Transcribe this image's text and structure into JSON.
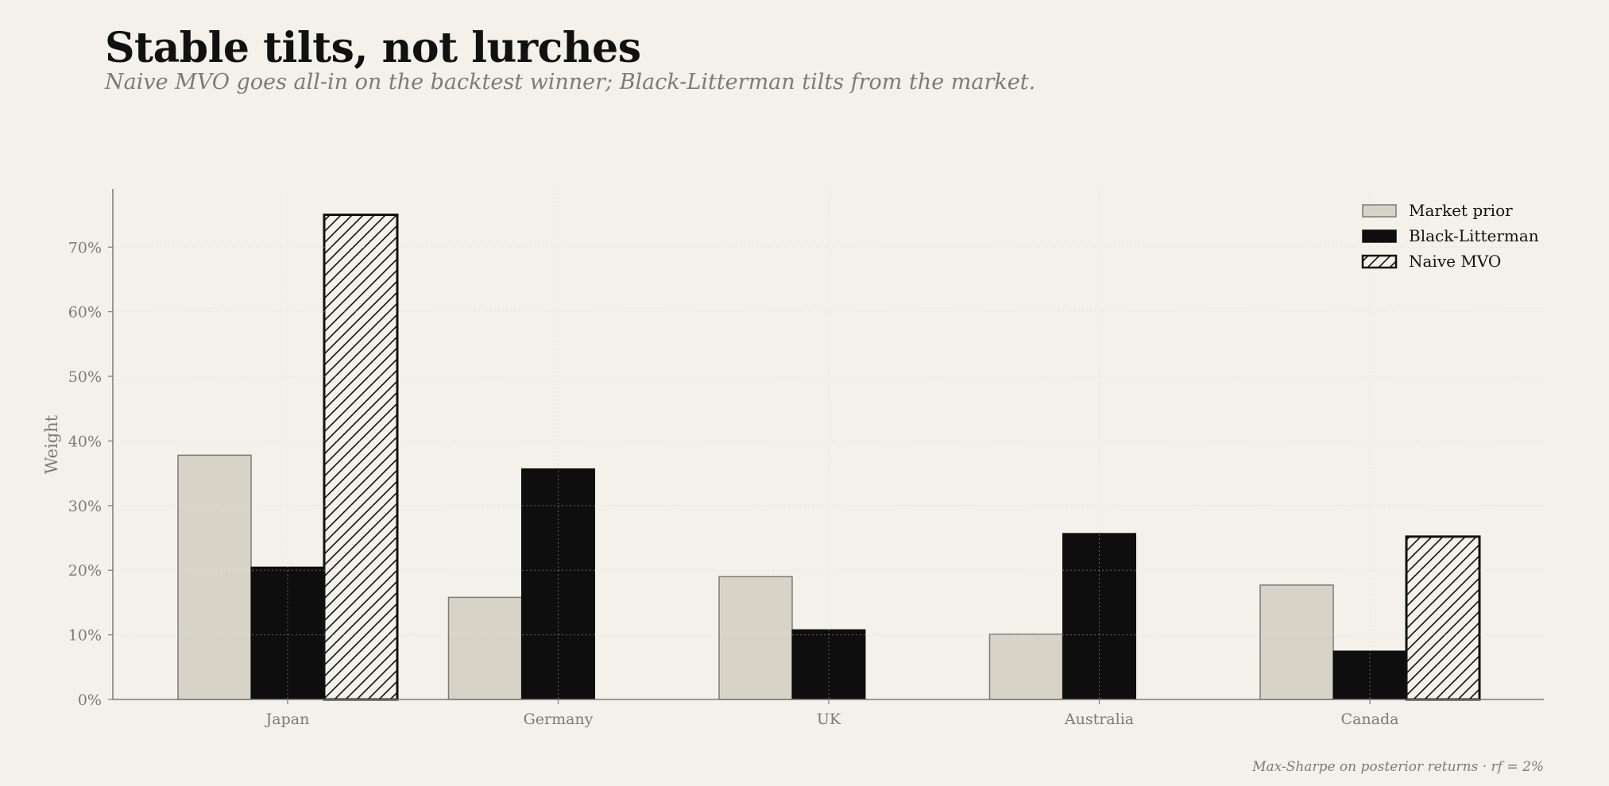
{
  "header": {
    "title": "Stable tilts, not lurches",
    "subtitle": "Naive MVO goes all-in on the backtest winner; Black-Litterman tilts from the market."
  },
  "footnote": "Max-Sharpe on posterior returns  ·  rf = 2%",
  "colors": {
    "background": "#f4f1ea",
    "market_prior": "#d7d3c7",
    "black_litterman": "#0e0e0e",
    "naive_mvo": "#f4f1ea",
    "hatch": "#111111",
    "grid": "#dcd8cf",
    "axis_text": "#7b7b7b"
  },
  "chart_data": {
    "type": "bar",
    "categories": [
      "Japan",
      "Germany",
      "UK",
      "Australia",
      "Canada"
    ],
    "series": [
      {
        "name": "Market prior",
        "values": [
          0.378,
          0.158,
          0.19,
          0.101,
          0.177
        ]
      },
      {
        "name": "Black-Litterman",
        "values": [
          0.205,
          0.357,
          0.108,
          0.257,
          0.075
        ]
      },
      {
        "name": "Naive MVO",
        "values": [
          0.75,
          0.0,
          0.0,
          0.0,
          0.252
        ]
      }
    ],
    "title": "",
    "xlabel": "",
    "ylabel": "Weight",
    "ylim": [
      0,
      0.79
    ],
    "yticks": [
      0,
      0.1,
      0.2,
      0.3,
      0.4,
      0.5,
      0.6,
      0.7
    ],
    "ytick_labels": [
      "0%",
      "10%",
      "20%",
      "30%",
      "40%",
      "50%",
      "60%",
      "70%"
    ],
    "grid": true,
    "legend_position": "top-right"
  }
}
